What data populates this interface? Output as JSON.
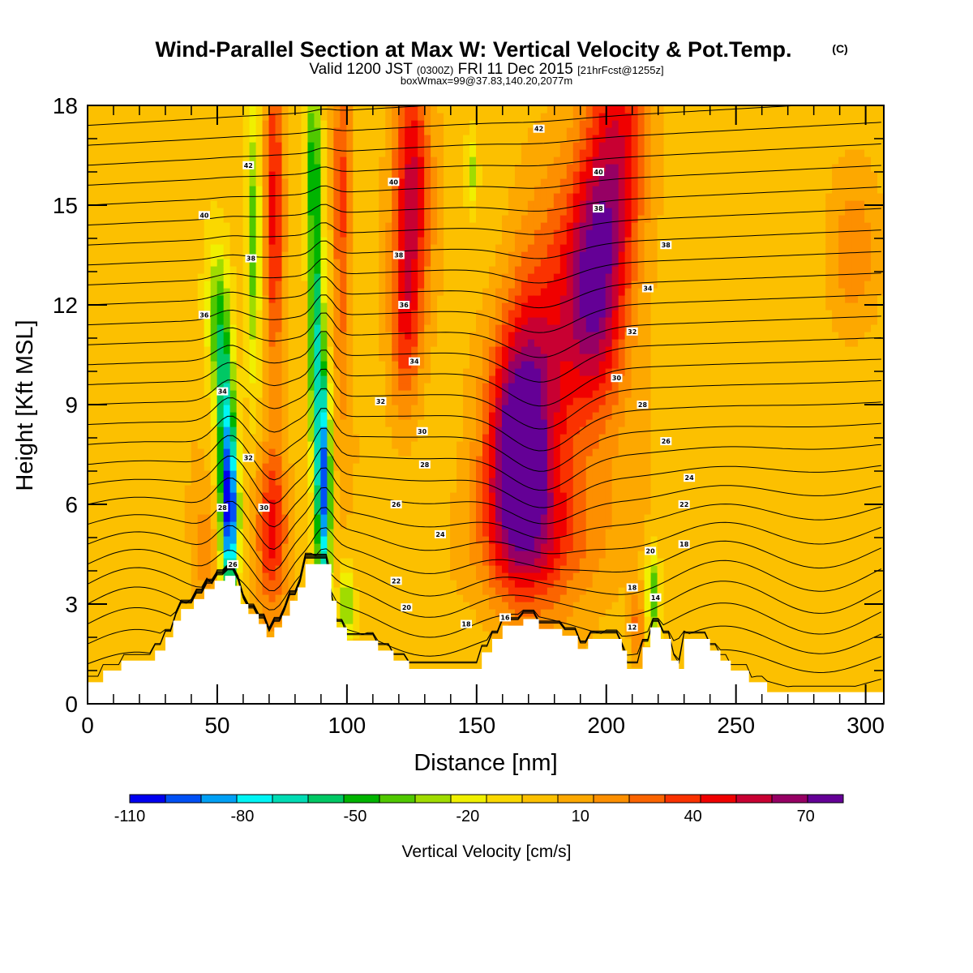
{
  "header": {
    "title": "Wind-Parallel Section at Max W: Vertical Velocity & Pot.Temp.",
    "copyright": "(C)",
    "valid_prefix": "Valid 1200 JST",
    "valid_utc": "(0300Z)",
    "valid_date": "FRI 11 Dec 2015",
    "forecast": "[21hrFcst@1255z]",
    "boxwmax": "boxWmax=99@37.83,140.20,2077m"
  },
  "chart_data": {
    "type": "heatmap",
    "xlabel": "Distance [nm]",
    "ylabel": "Height [Kft MSL]",
    "xlim": [
      0,
      307
    ],
    "ylim": [
      0,
      18
    ],
    "x_ticks": [
      "0",
      "50",
      "100",
      "150",
      "200",
      "250",
      "300"
    ],
    "y_ticks": [
      "0",
      "3",
      "6",
      "9",
      "12",
      "15",
      "18"
    ],
    "colorbar": {
      "label": "Vertical Velocity [cm/s]",
      "tick_labels": [
        "-110",
        "-80",
        "-50",
        "-20",
        "10",
        "40",
        "70"
      ],
      "tick_values": [
        -110,
        -80,
        -50,
        -20,
        10,
        40,
        70
      ],
      "bins": [
        -110,
        -100,
        -90,
        -80,
        -70,
        -60,
        -50,
        -40,
        -30,
        -20,
        -10,
        0,
        10,
        20,
        30,
        40,
        50,
        60,
        70,
        80
      ],
      "colors": [
        "#0000f0",
        "#0050f5",
        "#00a0f5",
        "#00f5f5",
        "#00dcb4",
        "#00c864",
        "#00b400",
        "#50c800",
        "#a0dc00",
        "#f0f000",
        "#fad800",
        "#fcc000",
        "#fda800",
        "#fd8f00",
        "#fb6400",
        "#fa3200",
        "#f00000",
        "#c80032",
        "#960064",
        "#640096"
      ]
    },
    "terrain": [
      [
        0,
        0.65
      ],
      [
        6,
        0.65
      ],
      [
        6,
        1.0
      ],
      [
        13,
        1.0
      ],
      [
        13,
        1.3
      ],
      [
        26,
        1.3
      ],
      [
        26,
        1.6
      ],
      [
        30,
        1.6
      ],
      [
        30,
        2.0
      ],
      [
        33,
        2.0
      ],
      [
        33,
        2.5
      ],
      [
        36,
        2.5
      ],
      [
        36,
        2.85
      ],
      [
        41,
        2.85
      ],
      [
        41,
        3.15
      ],
      [
        45,
        3.15
      ],
      [
        45,
        3.45
      ],
      [
        49,
        3.45
      ],
      [
        49,
        3.7
      ],
      [
        53,
        3.7
      ],
      [
        53,
        3.85
      ],
      [
        57,
        3.85
      ],
      [
        57,
        3.55
      ],
      [
        59,
        3.55
      ],
      [
        59,
        3.0
      ],
      [
        62,
        3.0
      ],
      [
        62,
        2.7
      ],
      [
        66,
        2.7
      ],
      [
        66,
        2.4
      ],
      [
        69,
        2.4
      ],
      [
        69,
        2.0
      ],
      [
        72,
        2.0
      ],
      [
        72,
        2.3
      ],
      [
        75,
        2.3
      ],
      [
        75,
        2.65
      ],
      [
        78,
        2.65
      ],
      [
        78,
        3.1
      ],
      [
        81,
        3.1
      ],
      [
        81,
        3.5
      ],
      [
        84,
        3.5
      ],
      [
        84,
        4.2
      ],
      [
        94,
        4.2
      ],
      [
        94,
        3.1
      ],
      [
        96,
        3.1
      ],
      [
        96,
        2.3
      ],
      [
        100,
        2.3
      ],
      [
        100,
        1.9
      ],
      [
        112,
        1.9
      ],
      [
        112,
        1.6
      ],
      [
        118,
        1.6
      ],
      [
        118,
        1.3
      ],
      [
        124,
        1.3
      ],
      [
        124,
        1.05
      ],
      [
        152,
        1.05
      ],
      [
        152,
        1.55
      ],
      [
        156,
        1.55
      ],
      [
        156,
        1.95
      ],
      [
        160,
        1.95
      ],
      [
        160,
        2.35
      ],
      [
        168,
        2.35
      ],
      [
        168,
        2.55
      ],
      [
        174,
        2.55
      ],
      [
        174,
        2.25
      ],
      [
        183,
        2.25
      ],
      [
        183,
        2.05
      ],
      [
        189,
        2.05
      ],
      [
        189,
        1.65
      ],
      [
        193,
        1.65
      ],
      [
        193,
        1.95
      ],
      [
        206,
        1.95
      ],
      [
        206,
        1.6
      ],
      [
        208,
        1.6
      ],
      [
        208,
        1.05
      ],
      [
        214,
        1.05
      ],
      [
        214,
        1.7
      ],
      [
        217,
        1.7
      ],
      [
        217,
        2.3
      ],
      [
        221,
        2.3
      ],
      [
        221,
        1.95
      ],
      [
        225,
        1.95
      ],
      [
        225,
        1.3
      ],
      [
        228,
        1.3
      ],
      [
        228,
        1.05
      ],
      [
        230,
        1.05
      ],
      [
        230,
        1.95
      ],
      [
        240,
        1.95
      ],
      [
        240,
        1.6
      ],
      [
        244,
        1.6
      ],
      [
        244,
        1.3
      ],
      [
        248,
        1.3
      ],
      [
        248,
        1.0
      ],
      [
        255,
        1.0
      ],
      [
        255,
        0.65
      ],
      [
        262,
        0.65
      ],
      [
        262,
        0.35
      ],
      [
        307,
        0.35
      ]
    ],
    "contour_labels": [
      {
        "x": 62,
        "y": 16.2,
        "text": "42"
      },
      {
        "x": 45,
        "y": 14.7,
        "text": "40"
      },
      {
        "x": 63,
        "y": 13.4,
        "text": "38"
      },
      {
        "x": 45,
        "y": 11.7,
        "text": "36"
      },
      {
        "x": 52,
        "y": 9.4,
        "text": "34"
      },
      {
        "x": 62,
        "y": 7.4,
        "text": "32"
      },
      {
        "x": 52,
        "y": 5.9,
        "text": "28"
      },
      {
        "x": 68,
        "y": 5.9,
        "text": "30"
      },
      {
        "x": 56,
        "y": 4.2,
        "text": "26"
      },
      {
        "x": 174,
        "y": 17.3,
        "text": "42"
      },
      {
        "x": 118,
        "y": 15.7,
        "text": "40"
      },
      {
        "x": 197,
        "y": 16.0,
        "text": "40"
      },
      {
        "x": 197,
        "y": 14.9,
        "text": "38"
      },
      {
        "x": 120,
        "y": 13.5,
        "text": "38"
      },
      {
        "x": 223,
        "y": 13.8,
        "text": "38"
      },
      {
        "x": 122,
        "y": 12.0,
        "text": "36"
      },
      {
        "x": 216,
        "y": 12.5,
        "text": "34"
      },
      {
        "x": 126,
        "y": 10.3,
        "text": "34"
      },
      {
        "x": 210,
        "y": 11.2,
        "text": "32"
      },
      {
        "x": 113,
        "y": 9.1,
        "text": "32"
      },
      {
        "x": 204,
        "y": 9.8,
        "text": "30"
      },
      {
        "x": 129,
        "y": 8.2,
        "text": "30"
      },
      {
        "x": 214,
        "y": 9.0,
        "text": "28"
      },
      {
        "x": 130,
        "y": 7.2,
        "text": "28"
      },
      {
        "x": 223,
        "y": 7.9,
        "text": "26"
      },
      {
        "x": 119,
        "y": 6.0,
        "text": "26"
      },
      {
        "x": 232,
        "y": 6.8,
        "text": "24"
      },
      {
        "x": 136,
        "y": 5.1,
        "text": "24"
      },
      {
        "x": 230,
        "y": 6.0,
        "text": "22"
      },
      {
        "x": 119,
        "y": 3.7,
        "text": "22"
      },
      {
        "x": 123,
        "y": 2.9,
        "text": "20"
      },
      {
        "x": 217,
        "y": 4.6,
        "text": "20"
      },
      {
        "x": 146,
        "y": 2.4,
        "text": "18"
      },
      {
        "x": 210,
        "y": 3.5,
        "text": "18"
      },
      {
        "x": 230,
        "y": 4.8,
        "text": "18"
      },
      {
        "x": 161,
        "y": 2.6,
        "text": "16"
      },
      {
        "x": 219,
        "y": 3.2,
        "text": "14"
      },
      {
        "x": 210,
        "y": 2.3,
        "text": "12"
      }
    ],
    "w_features": [
      {
        "x": 55,
        "y": 5.6,
        "sx": 2.2,
        "sy": 1.8,
        "amp": -100
      },
      {
        "x": 53,
        "y": 8.5,
        "sx": 2.5,
        "sy": 2.2,
        "amp": -60
      },
      {
        "x": 50,
        "y": 11.5,
        "sx": 3.0,
        "sy": 1.6,
        "amp": -40
      },
      {
        "x": 64,
        "y": 14.0,
        "sx": 2.0,
        "sy": 3.0,
        "amp": -45
      },
      {
        "x": 91,
        "y": 6.5,
        "sx": 2.0,
        "sy": 2.5,
        "amp": -100
      },
      {
        "x": 88,
        "y": 11.0,
        "sx": 2.0,
        "sy": 3.0,
        "amp": -60
      },
      {
        "x": 87,
        "y": 16.5,
        "sx": 2.0,
        "sy": 2.0,
        "amp": -45
      },
      {
        "x": 100,
        "y": 3.0,
        "sx": 2.0,
        "sy": 0.8,
        "amp": -40
      },
      {
        "x": 148,
        "y": 16.0,
        "sx": 1.5,
        "sy": 0.8,
        "amp": -30
      },
      {
        "x": 218,
        "y": 3.3,
        "sx": 2.0,
        "sy": 1.0,
        "amp": -45
      },
      {
        "x": 71,
        "y": 5.3,
        "sx": 4.5,
        "sy": 1.8,
        "amp": 50
      },
      {
        "x": 72,
        "y": 15.0,
        "sx": 2.5,
        "sy": 4.0,
        "amp": 45
      },
      {
        "x": 98,
        "y": 15.0,
        "sx": 2.5,
        "sy": 4.0,
        "amp": 40
      },
      {
        "x": 125,
        "y": 15.5,
        "sx": 5.0,
        "sy": 3.0,
        "amp": 55
      },
      {
        "x": 122,
        "y": 11.0,
        "sx": 4.0,
        "sy": 2.0,
        "amp": 30
      },
      {
        "x": 165,
        "y": 7.5,
        "sx": 8.0,
        "sy": 2.5,
        "amp": 70
      },
      {
        "x": 175,
        "y": 9.5,
        "sx": 10.0,
        "sy": 3.5,
        "amp": 50
      },
      {
        "x": 195,
        "y": 12.5,
        "sx": 8.0,
        "sy": 2.8,
        "amp": 70
      },
      {
        "x": 205,
        "y": 16.5,
        "sx": 8.0,
        "sy": 3.0,
        "amp": 50
      },
      {
        "x": 175,
        "y": 5.0,
        "sx": 18.0,
        "sy": 1.5,
        "amp": 30
      },
      {
        "x": 45,
        "y": 4.5,
        "sx": 3.0,
        "sy": 1.2,
        "amp": 20
      },
      {
        "x": 295,
        "y": 13.5,
        "sx": 6.0,
        "sy": 1.5,
        "amp": 20
      },
      {
        "x": 212,
        "y": 2.3,
        "sx": 2.0,
        "sy": 0.8,
        "amp": 30
      }
    ]
  }
}
